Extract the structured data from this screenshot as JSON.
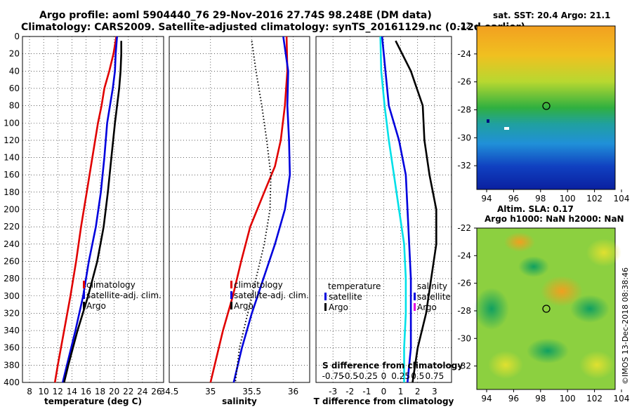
{
  "title": {
    "line1": "Argo profile: aoml 5904440_76 29-Nov-2016 27.74S 98.248E (DM data)",
    "line2": "Climatology: CARS2009. Satellite-adjusted climatology: synTS_20161129.nc (0.12d earlier)"
  },
  "colors": {
    "climatology": "#e00000",
    "satellite": "#0000dd",
    "argo": "#000000",
    "t_diff_sat": "#00e0e8",
    "s_legend_sat": "#0000dd",
    "s_legend_argo": "#e000e0"
  },
  "chart_data": [
    {
      "type": "line",
      "panel": "temperature",
      "xlabel": "temperature (deg C)",
      "xlim": [
        7,
        27
      ],
      "xticks": [
        8,
        10,
        12,
        14,
        16,
        18,
        20,
        22,
        24,
        26
      ],
      "ylim": [
        400,
        0
      ],
      "yticks": [
        0,
        20,
        40,
        60,
        80,
        100,
        120,
        140,
        160,
        180,
        200,
        220,
        240,
        260,
        280,
        300,
        320,
        340,
        360,
        380,
        400
      ],
      "legend": [
        "climatology",
        "satellite-adj. clim.",
        "Argo"
      ],
      "series": [
        {
          "name": "climatology",
          "depth": [
            0,
            20,
            40,
            60,
            80,
            100,
            140,
            180,
            220,
            260,
            300,
            340,
            380,
            400
          ],
          "values": [
            20.3,
            19.9,
            19.3,
            18.6,
            18.2,
            17.7,
            16.9,
            16.1,
            15.3,
            14.6,
            13.8,
            12.9,
            12.0,
            11.6
          ]
        },
        {
          "name": "satellite-adj. clim.",
          "depth": [
            0,
            20,
            40,
            60,
            80,
            100,
            140,
            180,
            220,
            260,
            300,
            340,
            380,
            400
          ],
          "values": [
            20.4,
            20.2,
            20.1,
            19.8,
            19.4,
            19.0,
            18.6,
            18.1,
            17.4,
            16.4,
            15.6,
            14.5,
            13.3,
            12.7
          ]
        },
        {
          "name": "Argo",
          "depth": [
            5,
            20,
            40,
            60,
            80,
            100,
            140,
            180,
            220,
            260,
            300,
            340,
            380,
            400
          ],
          "values": [
            21.0,
            21.0,
            20.9,
            20.7,
            20.4,
            20.1,
            19.6,
            19.1,
            18.5,
            17.6,
            16.3,
            14.8,
            13.5,
            12.9
          ]
        }
      ]
    },
    {
      "type": "line",
      "panel": "salinity",
      "xlabel": "salinity",
      "xlim": [
        34.5,
        36.2
      ],
      "xticks": [
        34.5,
        35,
        35.5,
        36
      ],
      "ylim": [
        400,
        0
      ],
      "legend": [
        "climatology",
        "satellite-adj. clim.",
        "Argo"
      ],
      "series": [
        {
          "name": "climatology",
          "depth": [
            0,
            40,
            80,
            120,
            150,
            180,
            220,
            260,
            300,
            340,
            380,
            400
          ],
          "values": [
            35.92,
            35.93,
            35.9,
            35.85,
            35.78,
            35.65,
            35.48,
            35.37,
            35.27,
            35.15,
            35.05,
            35.0
          ]
        },
        {
          "name": "satellite-adj. clim.",
          "depth": [
            0,
            40,
            80,
            120,
            160,
            200,
            240,
            280,
            320,
            360,
            400
          ],
          "values": [
            35.88,
            35.94,
            35.93,
            35.95,
            35.96,
            35.9,
            35.78,
            35.64,
            35.5,
            35.38,
            35.28
          ]
        },
        {
          "name": "Argo",
          "depth": [
            5,
            40,
            80,
            120,
            160,
            200,
            240,
            280,
            320,
            360,
            400
          ],
          "values": [
            35.5,
            35.55,
            35.62,
            35.68,
            35.73,
            35.72,
            35.65,
            35.55,
            35.45,
            35.35,
            35.3
          ]
        }
      ]
    },
    {
      "type": "line",
      "panel": "difference",
      "xlabel": "T difference from climatology",
      "xlabel_top": "S difference from climatology",
      "xlim": [
        -4,
        4
      ],
      "xticks": [
        -3,
        -2,
        -1,
        0,
        1,
        2,
        3
      ],
      "xticks_top": [
        "-0.75",
        "-0.5",
        "-0.25",
        "0",
        "0.25",
        "0.5",
        "0.75"
      ],
      "ylim": [
        400,
        0
      ],
      "legend_left": [
        "temperature",
        "satellite",
        "Argo"
      ],
      "legend_right": [
        "salinity",
        "satellite",
        "Argo"
      ],
      "series": [
        {
          "name": "satellite (T)",
          "depth": [
            0,
            40,
            80,
            120,
            160,
            200,
            240,
            280,
            320,
            360,
            400
          ],
          "values": [
            -0.1,
            0.1,
            0.3,
            0.9,
            1.3,
            1.4,
            1.5,
            1.6,
            1.6,
            1.6,
            1.4
          ]
        },
        {
          "name": "Argo (T)",
          "depth": [
            5,
            40,
            80,
            120,
            160,
            200,
            240,
            280,
            320,
            360,
            400
          ],
          "values": [
            0.7,
            1.6,
            2.3,
            2.4,
            2.7,
            3.1,
            3.1,
            2.8,
            2.5,
            2.0,
            1.7
          ]
        },
        {
          "name": "satellite (S)",
          "depth": [
            0,
            40,
            80,
            120,
            160,
            200,
            240,
            280,
            320,
            360,
            400
          ],
          "values": [
            -0.2,
            -0.15,
            0.05,
            0.3,
            0.6,
            0.9,
            1.2,
            1.3,
            1.3,
            1.2,
            1.2
          ]
        }
      ]
    }
  ],
  "maps": {
    "sst_title": "sat. SST: 20.4 Argo: 21.1",
    "sla_title_1": "Altim. SLA: 0.17",
    "sla_title_2": "Argo h1000: NaN h2000: NaN",
    "lat_ticks": [
      "-22",
      "-24",
      "-26",
      "-28",
      "-30",
      "-32"
    ],
    "lon_ticks": [
      "94",
      "96",
      "98",
      "100",
      "102",
      "104"
    ]
  },
  "credit": "©IMOS 13-Dec-2018 08:38:46"
}
